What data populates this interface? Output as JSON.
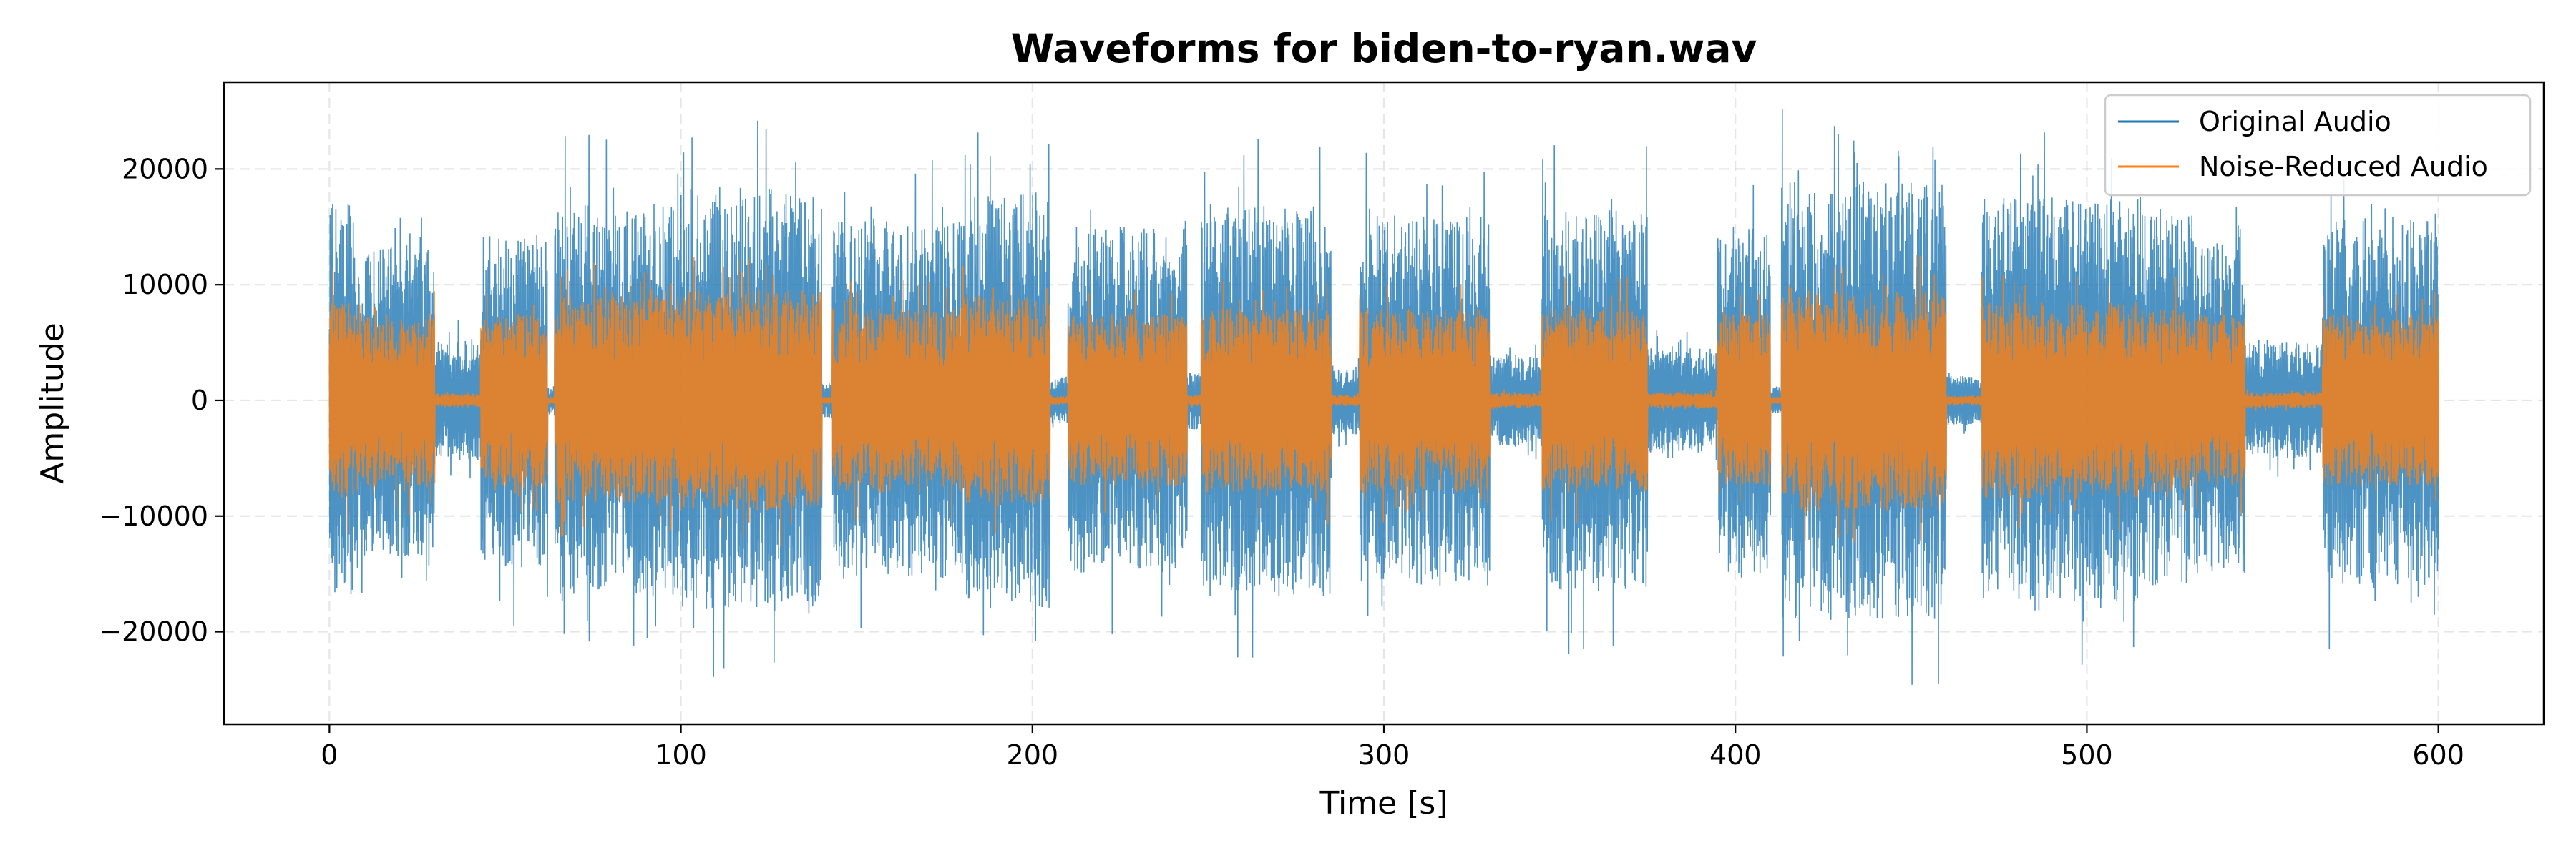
{
  "chart_data": {
    "type": "line",
    "title": "Waveforms for biden-to-ryan.wav",
    "xlabel": "Time [s]",
    "ylabel": "Amplitude",
    "xlim": [
      -30,
      630
    ],
    "ylim": [
      -28000,
      27500
    ],
    "x_ticks": [
      0,
      100,
      200,
      300,
      400,
      500,
      600
    ],
    "x_tick_labels": [
      "0",
      "100",
      "200",
      "300",
      "400",
      "500",
      "600"
    ],
    "y_ticks": [
      -20000,
      -10000,
      0,
      10000,
      20000
    ],
    "y_tick_labels": [
      "−20000",
      "−10000",
      "0",
      "10000",
      "20000"
    ],
    "grid": true,
    "legend_position": "top-right",
    "series": [
      {
        "name": "Original Audio",
        "color": "#1f77b4",
        "x_range": [
          0,
          600
        ],
        "envelope_segments": [
          {
            "start": 0,
            "end": 8,
            "amp": 17000
          },
          {
            "start": 8,
            "end": 30,
            "amp": 13500
          },
          {
            "start": 30,
            "end": 43,
            "amp": 5200
          },
          {
            "start": 43,
            "end": 62,
            "amp": 14500
          },
          {
            "start": 62,
            "end": 64,
            "amp": 1200
          },
          {
            "start": 64,
            "end": 100,
            "amp": 17000
          },
          {
            "start": 100,
            "end": 140,
            "amp": 18500
          },
          {
            "start": 140,
            "end": 143,
            "amp": 1500
          },
          {
            "start": 143,
            "end": 180,
            "amp": 15500
          },
          {
            "start": 180,
            "end": 205,
            "amp": 18000
          },
          {
            "start": 205,
            "end": 210,
            "amp": 2000
          },
          {
            "start": 210,
            "end": 244,
            "amp": 15000
          },
          {
            "start": 244,
            "end": 248,
            "amp": 2500
          },
          {
            "start": 248,
            "end": 285,
            "amp": 17000
          },
          {
            "start": 285,
            "end": 293,
            "amp": 3000
          },
          {
            "start": 293,
            "end": 330,
            "amp": 16000
          },
          {
            "start": 330,
            "end": 345,
            "amp": 4000
          },
          {
            "start": 345,
            "end": 375,
            "amp": 16500
          },
          {
            "start": 375,
            "end": 395,
            "amp": 4500
          },
          {
            "start": 395,
            "end": 410,
            "amp": 15000
          },
          {
            "start": 410,
            "end": 413,
            "amp": 1200
          },
          {
            "start": 413,
            "end": 460,
            "amp": 19000
          },
          {
            "start": 460,
            "end": 470,
            "amp": 2200
          },
          {
            "start": 470,
            "end": 515,
            "amp": 17500
          },
          {
            "start": 515,
            "end": 530,
            "amp": 16000
          },
          {
            "start": 530,
            "end": 545,
            "amp": 15000
          },
          {
            "start": 545,
            "end": 567,
            "amp": 5000
          },
          {
            "start": 567,
            "end": 600,
            "amp": 16000
          }
        ]
      },
      {
        "name": "Noise-Reduced Audio",
        "color": "#ff7f0e",
        "x_range": [
          0,
          600
        ],
        "envelope_segments": [
          {
            "start": 0,
            "end": 8,
            "amp": 8500
          },
          {
            "start": 8,
            "end": 30,
            "amp": 7500
          },
          {
            "start": 30,
            "end": 43,
            "amp": 600
          },
          {
            "start": 43,
            "end": 62,
            "amp": 7500
          },
          {
            "start": 62,
            "end": 64,
            "amp": 300
          },
          {
            "start": 64,
            "end": 100,
            "amp": 9000
          },
          {
            "start": 100,
            "end": 140,
            "amp": 9500
          },
          {
            "start": 140,
            "end": 143,
            "amp": 300
          },
          {
            "start": 143,
            "end": 180,
            "amp": 8000
          },
          {
            "start": 180,
            "end": 205,
            "amp": 9000
          },
          {
            "start": 205,
            "end": 210,
            "amp": 400
          },
          {
            "start": 210,
            "end": 244,
            "amp": 7500
          },
          {
            "start": 244,
            "end": 248,
            "amp": 500
          },
          {
            "start": 248,
            "end": 285,
            "amp": 8000
          },
          {
            "start": 285,
            "end": 293,
            "amp": 500
          },
          {
            "start": 293,
            "end": 330,
            "amp": 8000
          },
          {
            "start": 330,
            "end": 345,
            "amp": 700
          },
          {
            "start": 345,
            "end": 375,
            "amp": 8000
          },
          {
            "start": 375,
            "end": 395,
            "amp": 700
          },
          {
            "start": 395,
            "end": 410,
            "amp": 7500
          },
          {
            "start": 410,
            "end": 413,
            "amp": 300
          },
          {
            "start": 413,
            "end": 460,
            "amp": 9500
          },
          {
            "start": 460,
            "end": 470,
            "amp": 400
          },
          {
            "start": 470,
            "end": 515,
            "amp": 8500
          },
          {
            "start": 515,
            "end": 530,
            "amp": 8000
          },
          {
            "start": 530,
            "end": 545,
            "amp": 7500
          },
          {
            "start": 545,
            "end": 567,
            "amp": 700
          },
          {
            "start": 567,
            "end": 600,
            "amp": 7500
          }
        ]
      }
    ]
  }
}
